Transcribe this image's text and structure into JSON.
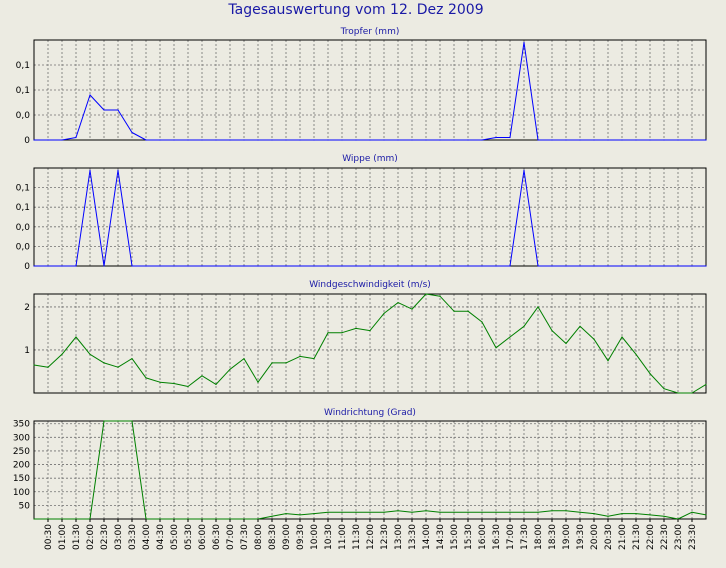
{
  "title": "Tagesauswertung vom 12. Dez 2009",
  "colors": {
    "background": "#ecebe2",
    "title_text": "#1a1aa6",
    "chart_title_text": "#1a1aa6",
    "plot_background": "#ecebe2",
    "grid": "#707070",
    "line_blue": "#0000ff",
    "line_green": "#008000"
  },
  "x_tick_labels": [
    "00:30",
    "01:00",
    "01:30",
    "02:00",
    "02:30",
    "03:00",
    "03:30",
    "04:00",
    "04:30",
    "05:00",
    "05:30",
    "06:00",
    "06:30",
    "07:00",
    "07:30",
    "08:00",
    "08:30",
    "09:00",
    "09:30",
    "10:00",
    "10:30",
    "11:00",
    "11:30",
    "12:00",
    "12:30",
    "13:00",
    "13:30",
    "14:00",
    "14:30",
    "15:00",
    "15:30",
    "16:00",
    "16:30",
    "17:00",
    "17:30",
    "18:00",
    "18:30",
    "19:00",
    "19:30",
    "20:00",
    "20:30",
    "21:00",
    "21:30",
    "22:00",
    "22:30",
    "23:00",
    "23:30"
  ],
  "chart_data": [
    {
      "type": "line",
      "title": "Tropfer (mm)",
      "color": "line_blue",
      "grid": true,
      "ylim": [
        0,
        0.2
      ],
      "yticks": [
        0,
        0.05,
        0.1,
        0.15
      ],
      "ytick_labels": [
        "0",
        "0,0",
        "0,1",
        "0,1"
      ],
      "series": [
        {
          "x": [
            0,
            0.5,
            1,
            1.5,
            2,
            2.5,
            3,
            3.5,
            4,
            4.5,
            5,
            5.5,
            6,
            6.5,
            7,
            7.5,
            8,
            8.5,
            9,
            9.5,
            10,
            10.5,
            11,
            11.5,
            12,
            12.5,
            13,
            13.5,
            14,
            14.5,
            15,
            15.5,
            16,
            16.5,
            17,
            17.5,
            18,
            18.5,
            19,
            19.5,
            20,
            20.5,
            21,
            21.5,
            22,
            22.5,
            23,
            23.5,
            24
          ],
          "values": [
            0,
            0,
            0,
            0.005,
            0.09,
            0.06,
            0.06,
            0.015,
            0,
            0,
            0,
            0,
            0,
            0,
            0,
            0,
            0,
            0,
            0,
            0,
            0,
            0,
            0,
            0,
            0,
            0,
            0,
            0,
            0,
            0,
            0,
            0,
            0,
            0.005,
            0.005,
            0.195,
            0,
            0,
            0,
            0,
            0,
            0,
            0,
            0,
            0,
            0,
            0,
            0,
            0
          ]
        }
      ]
    },
    {
      "type": "line",
      "title": "Wippe (mm)",
      "color": "line_blue",
      "grid": true,
      "ylim": [
        0,
        0.2
      ],
      "yticks": [
        0,
        0.04,
        0.08,
        0.12,
        0.16
      ],
      "ytick_labels": [
        "0",
        "0,0",
        "0,0",
        "0,1",
        "0,1"
      ],
      "series": [
        {
          "x": [
            0,
            0.5,
            1,
            1.5,
            2,
            2.5,
            3,
            3.5,
            4,
            4.5,
            5,
            5.5,
            6,
            6.5,
            7,
            7.5,
            8,
            8.5,
            9,
            9.5,
            10,
            10.5,
            11,
            11.5,
            12,
            12.5,
            13,
            13.5,
            14,
            14.5,
            15,
            15.5,
            16,
            16.5,
            17,
            17.5,
            18,
            18.5,
            19,
            19.5,
            20,
            20.5,
            21,
            21.5,
            22,
            22.5,
            23,
            23.5,
            24
          ],
          "values": [
            0,
            0,
            0,
            0,
            0.195,
            0,
            0.195,
            0,
            0,
            0,
            0,
            0,
            0,
            0,
            0,
            0,
            0,
            0,
            0,
            0,
            0,
            0,
            0,
            0,
            0,
            0,
            0,
            0,
            0,
            0,
            0,
            0,
            0,
            0,
            0,
            0.195,
            0,
            0,
            0,
            0,
            0,
            0,
            0,
            0,
            0,
            0,
            0,
            0,
            0
          ]
        }
      ]
    },
    {
      "type": "line",
      "title": "Windgeschwindigkeit (m/s)",
      "color": "line_green",
      "grid": true,
      "ylim": [
        0,
        2.3
      ],
      "yticks": [
        1,
        2
      ],
      "ytick_labels": [
        "1",
        "2"
      ],
      "series": [
        {
          "x": [
            0,
            0.5,
            1,
            1.5,
            2,
            2.5,
            3,
            3.5,
            4,
            4.5,
            5,
            5.5,
            6,
            6.5,
            7,
            7.5,
            8,
            8.5,
            9,
            9.5,
            10,
            10.5,
            11,
            11.5,
            12,
            12.5,
            13,
            13.5,
            14,
            14.5,
            15,
            15.5,
            16,
            16.5,
            17,
            17.5,
            18,
            18.5,
            19,
            19.5,
            20,
            20.5,
            21,
            21.5,
            22,
            22.5,
            23,
            23.5,
            24
          ],
          "values": [
            0.65,
            0.6,
            0.9,
            1.3,
            0.9,
            0.7,
            0.6,
            0.8,
            0.35,
            0.25,
            0.22,
            0.15,
            0.4,
            0.2,
            0.55,
            0.8,
            0.25,
            0.7,
            0.7,
            0.85,
            0.8,
            1.4,
            1.4,
            1.5,
            1.45,
            1.85,
            2.1,
            1.95,
            2.3,
            2.25,
            1.9,
            1.9,
            1.65,
            1.05,
            1.3,
            1.55,
            2.0,
            1.45,
            1.15,
            1.55,
            1.25,
            0.75,
            1.3,
            0.9,
            0.45,
            0.1,
            0.0,
            0.0,
            0.2
          ]
        }
      ]
    },
    {
      "type": "line",
      "title": "Windrichtung (Grad)",
      "color": "line_green",
      "grid": true,
      "ylim": [
        0,
        360
      ],
      "yticks": [
        50,
        100,
        150,
        200,
        250,
        300,
        350
      ],
      "ytick_labels": [
        "50",
        "100",
        "150",
        "200",
        "250",
        "300",
        "350"
      ],
      "series": [
        {
          "x": [
            0,
            0.5,
            1,
            1.5,
            2,
            2.5,
            3,
            3.5,
            4,
            4.5,
            5,
            5.5,
            6,
            6.5,
            7,
            7.5,
            8,
            8.5,
            9,
            9.5,
            10,
            10.5,
            11,
            11.5,
            12,
            12.5,
            13,
            13.5,
            14,
            14.5,
            15,
            15.5,
            16,
            16.5,
            17,
            17.5,
            18,
            18.5,
            19,
            19.5,
            20,
            20.5,
            21,
            21.5,
            22,
            22.5,
            23,
            23.5,
            24
          ],
          "values": [
            0,
            0,
            0,
            0,
            0,
            360,
            360,
            360,
            0,
            0,
            0,
            0,
            0,
            0,
            0,
            0,
            0,
            10,
            20,
            15,
            20,
            25,
            25,
            25,
            25,
            25,
            30,
            25,
            30,
            25,
            25,
            25,
            25,
            25,
            25,
            25,
            25,
            30,
            30,
            25,
            20,
            10,
            20,
            20,
            15,
            10,
            0,
            25,
            15
          ]
        }
      ]
    }
  ]
}
